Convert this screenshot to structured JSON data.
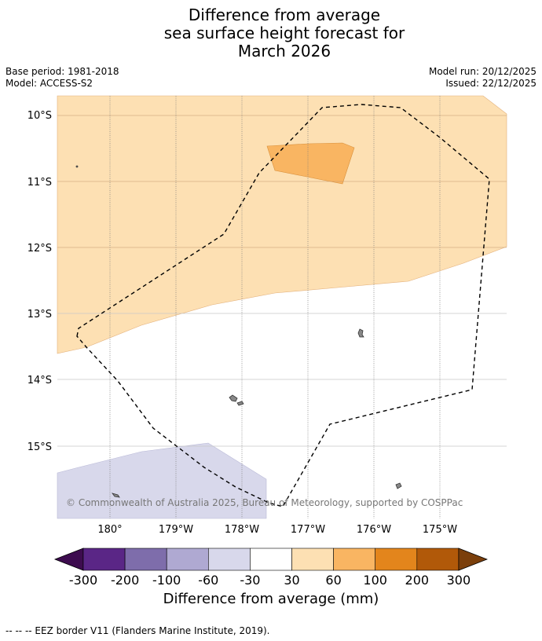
{
  "title": {
    "line1": "Difference from average",
    "line2": "sea surface height forecast for",
    "line3": "March 2026"
  },
  "meta": {
    "base_period": "Base period: 1981-2018",
    "model": "Model: ACCESS-S2",
    "model_run": "Model run: 20/12/2025",
    "issued": "Issued: 22/12/2025"
  },
  "map": {
    "lat_labels": [
      "10°S",
      "11°S",
      "12°S",
      "13°S",
      "14°S",
      "15°S"
    ],
    "lon_labels": [
      "180°",
      "179°W",
      "178°W",
      "177°W",
      "176°W",
      "175°W"
    ],
    "copyright": "© Commonwealth of Australia 2025, Bureau of Meteorology, supported by COSPPac"
  },
  "colorbar": {
    "title": "Difference from average (mm)",
    "labels": [
      "-300",
      "-200",
      "-100",
      "-60",
      "-30",
      "30",
      "60",
      "100",
      "200",
      "300"
    ],
    "colors": [
      "#3d0c4f",
      "#5a2686",
      "#7e6dab",
      "#afa9d2",
      "#d8d8eb",
      "#ffffff",
      "#fde0b3",
      "#f9b562",
      "#e3851c",
      "#b15909",
      "#7b3f0b"
    ]
  },
  "footer": {
    "eez_note": "--  --  -- EEZ border V11 (Flanders Marine Institute, 2019)."
  }
}
